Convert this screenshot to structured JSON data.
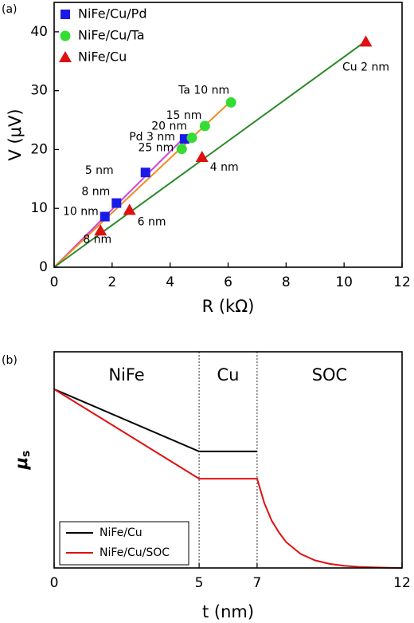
{
  "chart_data": [
    {
      "type": "scatter",
      "panel_label": "(a)",
      "xlabel": "R (kΩ)",
      "ylabel": "V (μV)",
      "xlim": [
        0,
        12
      ],
      "ylim": [
        0,
        45
      ],
      "xticks": [
        0,
        2,
        4,
        6,
        8,
        10,
        12
      ],
      "yticks": [
        0,
        10,
        20,
        30,
        40
      ],
      "legend": "upper left",
      "series": [
        {
          "name": "NiFe/Cu/Pd",
          "color": "#1a1ae6",
          "marker": "square",
          "x": [
            4.5,
            3.15,
            2.15,
            1.75
          ],
          "values": [
            21.8,
            16.1,
            10.9,
            8.6
          ],
          "point_labels": [
            "Pd 3 nm",
            "5 nm",
            "8 nm",
            "10 nm"
          ],
          "fit": {
            "color": "#cc44dd",
            "x": [
              0,
              4.6
            ],
            "values": [
              0,
              22.6
            ]
          }
        },
        {
          "name": "NiFe/Cu/Ta",
          "color": "#33dd33",
          "marker": "circle",
          "x": [
            6.1,
            5.2,
            4.75,
            4.4
          ],
          "values": [
            28,
            24,
            22,
            20.1
          ],
          "point_labels": [
            "Ta 10 nm",
            "15 nm",
            "20 nm",
            "25 nm"
          ],
          "fit": {
            "color": "#f08c1e",
            "x": [
              0,
              6.2
            ],
            "values": [
              0,
              28.7
            ]
          }
        },
        {
          "name": "NiFe/Cu",
          "color": "#dd1111",
          "marker": "triangle",
          "x": [
            10.75,
            5.1,
            2.6,
            1.6
          ],
          "values": [
            38.3,
            18.7,
            9.7,
            6.2
          ],
          "point_labels": [
            "Cu 2 nm",
            "4 nm",
            "6 nm",
            "8 nm"
          ],
          "fit": {
            "color": "#2a8a2a",
            "x": [
              0,
              10.8
            ],
            "values": [
              0,
              38.6
            ]
          }
        }
      ]
    },
    {
      "type": "line",
      "panel_label": "(b)",
      "xlabel": "t (nm)",
      "ylabel": "μ",
      "ylabel_sub": "s",
      "xlim": [
        0,
        12
      ],
      "ylim": [
        0,
        1
      ],
      "xticks": [
        0,
        5,
        7,
        12
      ],
      "legend": "lower left",
      "regions": [
        {
          "label": "NiFe",
          "color": "#000000",
          "start": 0,
          "end": 5
        },
        {
          "label": "Cu",
          "color": "#f08c1e",
          "start": 5,
          "end": 7
        },
        {
          "label": "SOC",
          "color": "#1a1acc",
          "start": 7,
          "end": 12
        }
      ],
      "series": [
        {
          "name": "NiFe/Cu",
          "color": "#000000",
          "x": [
            0,
            5,
            7
          ],
          "values": [
            0.827,
            0.539,
            0.539
          ]
        },
        {
          "name": "NiFe/Cu/SOC",
          "color": "#e01010",
          "x": [
            0,
            5,
            7,
            7.25,
            7.5,
            7.75,
            8,
            8.5,
            9,
            9.5,
            10,
            10.5,
            11,
            11.5,
            12
          ],
          "values": [
            0.827,
            0.413,
            0.413,
            0.3,
            0.22,
            0.165,
            0.12,
            0.065,
            0.035,
            0.019,
            0.01,
            0.005,
            0.003,
            0.001,
            0
          ]
        }
      ]
    }
  ]
}
